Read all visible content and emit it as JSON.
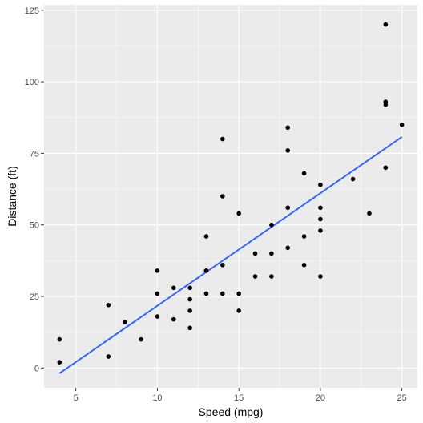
{
  "chart_data": {
    "type": "scatter",
    "title": "",
    "xlabel": "Speed (mpg)",
    "ylabel": "Distance (ft)",
    "xlim": [
      3.05,
      25.95
    ],
    "ylim": [
      -6.9,
      126.9
    ],
    "x_ticks": [
      5,
      10,
      15,
      20,
      25
    ],
    "y_ticks": [
      0,
      25,
      50,
      75,
      100,
      125
    ],
    "grid": true,
    "legend": "none",
    "colors": {
      "panel_background": "#ebebeb",
      "grid_major": "#ffffff",
      "points": "#000000",
      "fit_line": "#3366ff"
    },
    "points": [
      {
        "x": 4,
        "y": 2
      },
      {
        "x": 4,
        "y": 10
      },
      {
        "x": 7,
        "y": 4
      },
      {
        "x": 7,
        "y": 22
      },
      {
        "x": 8,
        "y": 16
      },
      {
        "x": 9,
        "y": 10
      },
      {
        "x": 10,
        "y": 18
      },
      {
        "x": 10,
        "y": 26
      },
      {
        "x": 10,
        "y": 34
      },
      {
        "x": 11,
        "y": 17
      },
      {
        "x": 11,
        "y": 28
      },
      {
        "x": 12,
        "y": 14
      },
      {
        "x": 12,
        "y": 20
      },
      {
        "x": 12,
        "y": 24
      },
      {
        "x": 12,
        "y": 28
      },
      {
        "x": 13,
        "y": 26
      },
      {
        "x": 13,
        "y": 34
      },
      {
        "x": 13,
        "y": 34
      },
      {
        "x": 13,
        "y": 46
      },
      {
        "x": 14,
        "y": 26
      },
      {
        "x": 14,
        "y": 36
      },
      {
        "x": 14,
        "y": 60
      },
      {
        "x": 14,
        "y": 80
      },
      {
        "x": 15,
        "y": 20
      },
      {
        "x": 15,
        "y": 26
      },
      {
        "x": 15,
        "y": 54
      },
      {
        "x": 16,
        "y": 32
      },
      {
        "x": 16,
        "y": 40
      },
      {
        "x": 17,
        "y": 32
      },
      {
        "x": 17,
        "y": 40
      },
      {
        "x": 17,
        "y": 50
      },
      {
        "x": 18,
        "y": 42
      },
      {
        "x": 18,
        "y": 56
      },
      {
        "x": 18,
        "y": 76
      },
      {
        "x": 18,
        "y": 84
      },
      {
        "x": 19,
        "y": 36
      },
      {
        "x": 19,
        "y": 46
      },
      {
        "x": 19,
        "y": 68
      },
      {
        "x": 20,
        "y": 32
      },
      {
        "x": 20,
        "y": 48
      },
      {
        "x": 20,
        "y": 52
      },
      {
        "x": 20,
        "y": 56
      },
      {
        "x": 20,
        "y": 64
      },
      {
        "x": 22,
        "y": 66
      },
      {
        "x": 23,
        "y": 54
      },
      {
        "x": 24,
        "y": 70
      },
      {
        "x": 24,
        "y": 92
      },
      {
        "x": 24,
        "y": 93
      },
      {
        "x": 24,
        "y": 120
      },
      {
        "x": 25,
        "y": 85
      }
    ],
    "fit_line": {
      "x": [
        4,
        25
      ],
      "y": [
        -1.85,
        80.73
      ]
    }
  }
}
